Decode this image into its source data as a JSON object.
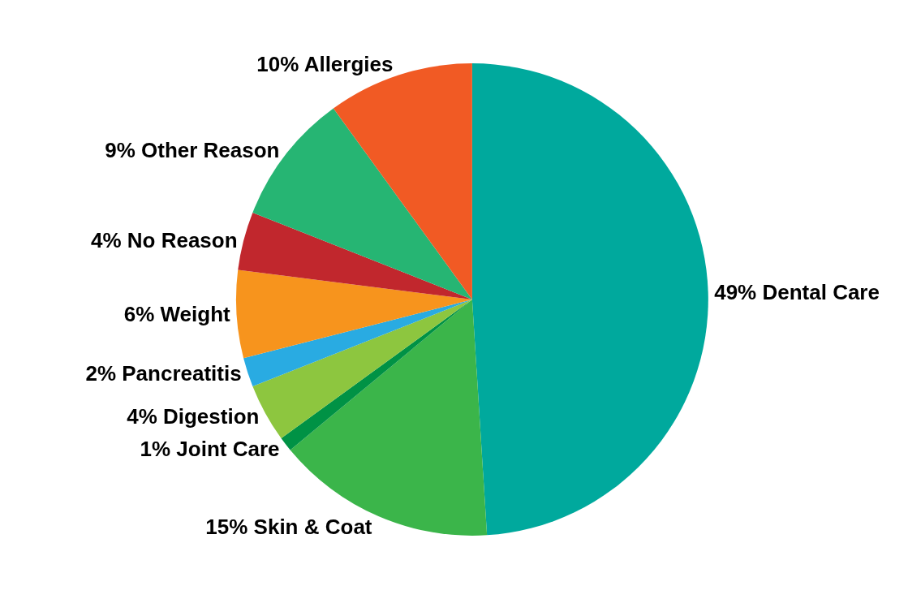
{
  "chart_data": {
    "type": "pie",
    "categories": [
      "Dental Care",
      "Skin & Coat",
      "Joint Care",
      "Digestion",
      "Pancreatitis",
      "Weight",
      "No Reason",
      "Other Reason",
      "Allergies"
    ],
    "values": [
      49,
      15,
      1,
      4,
      2,
      6,
      4,
      9,
      10
    ],
    "value_labels": [
      "49%",
      "15%",
      "1%",
      "4%",
      "2%",
      "6%",
      "4%",
      "9%",
      "10%"
    ],
    "colors": [
      "#00a99d",
      "#3bb54a",
      "#009245",
      "#8dc63f",
      "#29abe2",
      "#f7941d",
      "#c1272d",
      "#26b573",
      "#f15a24"
    ],
    "legend": false
  }
}
